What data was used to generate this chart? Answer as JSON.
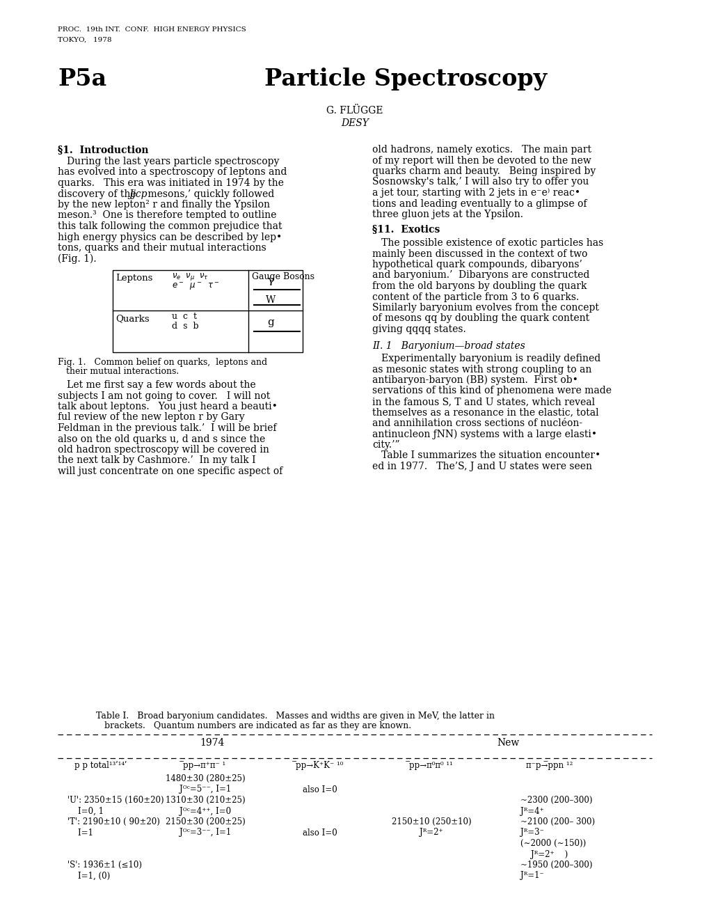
{
  "bg_color": "#ffffff",
  "header_line1": "PROC.  19th INT.  CONF.  HIGH ENERGY PHYSICS",
  "header_line2": "TOKYO,   1978",
  "title_left": "P5a",
  "title_right": "Particle Spectroscopy",
  "author": "G. FLÜGGE",
  "affiliation": "DESY",
  "section1_header": "§1.  Introduction",
  "section1_indent": "   During the last years particle spectroscopy",
  "section1_body": [
    "has evolved into a spectroscopy of leptons and",
    "quarks.   This era was initiated in 1974 by the",
    "discovery of the ⨁Jjcp⨂ mesons,’ quickly followed",
    "by the new lepton² r and finally the Ypsilon",
    "meson.³  One is therefore tempted to outline",
    "this talk following the common prejudice that",
    "high energy physics can be described by lep•",
    "tons, quarks and their mutual interactions",
    "(Fig. 1)."
  ],
  "fig1_caption_line1": "Fig. 1.   Common belief on quarks,  leptons and",
  "fig1_caption_line2": "   their mutual interactions.",
  "section2_indent": "   Let me first say a few words about the",
  "section2_body": [
    "subjects I am not going to cover.   I will not",
    "talk about leptons.   You just heard a beauti•",
    "ful review of the new lepton r by Gary",
    "Feldman in the previous talk.’  I will be brief",
    "also on the old quarks u, d and s since the",
    "old hadron spectroscopy will be covered in",
    "the next talk by Cashmore.’  In my talk I",
    "will just concentrate on one specific aspect of"
  ],
  "right_col_para1_indent": "old hadrons, namely exotics.   The main part",
  "right_col_para1": [
    "of my report will then be devoted to the new",
    "quarks charm and beauty.   Being inspired by",
    "Sosnowsky's talk,’ I will also try to offer you",
    "a jet tour, starting with 2 jets in e⁻e⁾ reac•",
    "tions and leading eventually to a glimpse of",
    "three gluon jets at the Ypsilon."
  ],
  "section11_header": "§11.  Exotics",
  "section11_indent": "   The possible existence of exotic particles has",
  "section11_body": [
    "mainly been discussed in the context of two",
    "hypothetical quark compounds, dibaryons’",
    "and baryonium.’  Dibaryons are constructed",
    "from the old baryons by doubling the quark",
    "content of the particle from 3 to 6 quarks.",
    "Similarly baryonium evolves from the concept",
    "of mesons qq by doubling the quark content",
    "giving qqqq states."
  ],
  "section_II1_header": "II. 1   Baryonium—broad states",
  "section_II1_indent": "   Experimentally baryonium is readily defined",
  "section_II1_body": [
    "as mesonic states with strong coupling to an",
    "antibaryon-baryon (BB) system.  First ob•",
    "servations of this kind of phenomena were made",
    "in the famous S, T and U states, which reveal",
    "themselves as a resonance in the elastic, total",
    "and annihilation cross sections of nucléon-",
    "antinucleon ƒNN) systems with a large elasti•",
    "city.’”",
    "   Table I summarizes the situation encounter•",
    "ed in 1977.   The’S, J and U states were seen"
  ],
  "table_caption_line1": "Table I.   Broad baryonium candidates.   Masses and widths are given in MeV, the latter in",
  "table_caption_line2": "   brackets.   Quantum numbers are indicated as far as they are known.",
  "table_header_1974": "1974",
  "table_header_new": "New",
  "col_positions": [
    145,
    295,
    460,
    620,
    790
  ],
  "col_ha": [
    "center",
    "center",
    "center",
    "center",
    "center"
  ],
  "table_col_headers": [
    "p p total¹³ʹ¹⁴ʹ",
    "̅pp→π⁺π⁻ ¹",
    "̅pp→K⁺K⁻ ¹⁰",
    "̅pp→π⁰π⁰ ¹¹",
    "π⁻p→̅ppn ¹²"
  ],
  "table_rows": [
    [
      "",
      "1480±30 (280±25)",
      "",
      "",
      ""
    ],
    [
      "",
      "Jᴼᶜ=5⁻⁻, I=1",
      "also I=0",
      "",
      ""
    ],
    [
      "'U': 2350±15 (160±20)",
      "1310±30 (210±25)",
      "",
      "",
      "~2300 (200–300)"
    ],
    [
      "    I=0, 1",
      "Jᴼᶜ=4⁺⁺, I=0",
      "",
      "",
      "Jᴿ=4⁺"
    ],
    [
      "'T': 2190±10 ( 90±20)",
      "2150±30 (200±25)",
      "",
      "2150±10 (250±10)",
      "~2100 (200– 300)"
    ],
    [
      "    I=1",
      "Jᴼᶜ=3⁻⁻, I=1",
      "also I=0",
      "Jᴿ=2⁺",
      "Jᴿ=3⁻"
    ],
    [
      "",
      "",
      "",
      "",
      "(∼2000 (∼150))"
    ],
    [
      "",
      "",
      "",
      "",
      "    Jᴿ=2⁺    )"
    ],
    [
      "'S': 1936±1 (≤10)",
      "",
      "",
      "",
      "~1950 (200–300)"
    ],
    [
      "    I=1, (0)",
      "",
      "",
      "",
      "Jᴿ=1⁻"
    ]
  ]
}
